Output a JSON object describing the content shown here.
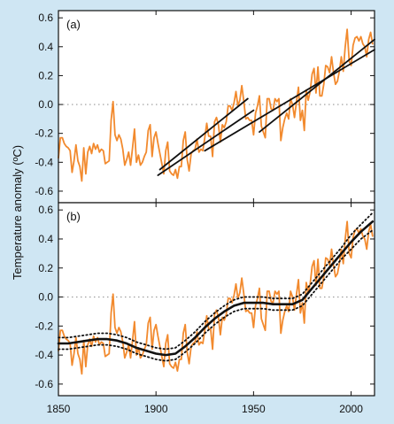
{
  "figure": {
    "background": "#cfe6f3",
    "ylabel": "Temperature anomaly (ºC)"
  },
  "colors": {
    "observations": "#f28a2e",
    "trend": "#111111",
    "zero_line": "#999999"
  },
  "chart_data": [
    {
      "type": "line",
      "panel_label": "(a)",
      "xlim": [
        1850,
        2012
      ],
      "ylim": [
        -0.68,
        0.65
      ],
      "yticks": [
        -0.6,
        -0.4,
        -0.2,
        0.0,
        0.2,
        0.4,
        0.6
      ],
      "ytick_labels": [
        "-0.6",
        "-0.4",
        "-0.2",
        "0.0",
        "0.2",
        "0.4",
        "0.6"
      ],
      "grid": false,
      "zero_line": "dotted",
      "series": [
        {
          "style": "orange-line",
          "x": [
            1850,
            1851,
            1852,
            1853,
            1854,
            1855,
            1856,
            1857,
            1858,
            1859,
            1860,
            1861,
            1862,
            1863,
            1864,
            1865,
            1866,
            1867,
            1868,
            1869,
            1870,
            1871,
            1872,
            1873,
            1874,
            1875,
            1876,
            1877,
            1878,
            1879,
            1880,
            1881,
            1882,
            1883,
            1884,
            1885,
            1886,
            1887,
            1888,
            1889,
            1890,
            1891,
            1892,
            1893,
            1894,
            1895,
            1896,
            1897,
            1898,
            1899,
            1900,
            1901,
            1902,
            1903,
            1904,
            1905,
            1906,
            1907,
            1908,
            1909,
            1910,
            1911,
            1912,
            1913,
            1914,
            1915,
            1916,
            1917,
            1918,
            1919,
            1920,
            1921,
            1922,
            1923,
            1924,
            1925,
            1926,
            1927,
            1928,
            1929,
            1930,
            1931,
            1932,
            1933,
            1934,
            1935,
            1936,
            1937,
            1938,
            1939,
            1940,
            1941,
            1942,
            1943,
            1944,
            1945,
            1946,
            1947,
            1948,
            1949,
            1950,
            1951,
            1952,
            1953,
            1954,
            1955,
            1956,
            1957,
            1958,
            1959,
            1960,
            1961,
            1962,
            1963,
            1964,
            1965,
            1966,
            1967,
            1968,
            1969,
            1970,
            1971,
            1972,
            1973,
            1974,
            1975,
            1976,
            1977,
            1978,
            1979,
            1980,
            1981,
            1982,
            1983,
            1984,
            1985,
            1986,
            1987,
            1988,
            1989,
            1990,
            1991,
            1992,
            1993,
            1994,
            1995,
            1996,
            1997,
            1998,
            1999,
            2000,
            2001,
            2002,
            2003,
            2004,
            2005,
            2006,
            2007,
            2008,
            2009,
            2010,
            2011
          ],
          "y": [
            -0.37,
            -0.23,
            -0.23,
            -0.27,
            -0.29,
            -0.3,
            -0.32,
            -0.47,
            -0.39,
            -0.28,
            -0.39,
            -0.43,
            -0.53,
            -0.3,
            -0.48,
            -0.33,
            -0.29,
            -0.34,
            -0.27,
            -0.31,
            -0.28,
            -0.33,
            -0.31,
            -0.32,
            -0.41,
            -0.4,
            -0.39,
            -0.11,
            0.02,
            -0.21,
            -0.25,
            -0.21,
            -0.24,
            -0.31,
            -0.42,
            -0.38,
            -0.33,
            -0.42,
            -0.3,
            -0.17,
            -0.4,
            -0.35,
            -0.42,
            -0.4,
            -0.36,
            -0.33,
            -0.18,
            -0.14,
            -0.36,
            -0.23,
            -0.19,
            -0.27,
            -0.34,
            -0.41,
            -0.48,
            -0.32,
            -0.26,
            -0.46,
            -0.48,
            -0.49,
            -0.45,
            -0.51,
            -0.43,
            -0.43,
            -0.25,
            -0.19,
            -0.38,
            -0.46,
            -0.34,
            -0.32,
            -0.31,
            -0.24,
            -0.33,
            -0.31,
            -0.32,
            -0.23,
            -0.13,
            -0.22,
            -0.22,
            -0.36,
            -0.12,
            -0.09,
            -0.14,
            -0.26,
            -0.14,
            -0.16,
            -0.12,
            -0.01,
            -0.01,
            -0.04,
            0.01,
            0.09,
            -0.01,
            0.03,
            0.13,
            0.02,
            -0.1,
            -0.09,
            -0.11,
            -0.11,
            -0.21,
            -0.06,
            -0.01,
            0.06,
            -0.15,
            -0.19,
            -0.23,
            0.04,
            0.04,
            -0.03,
            -0.04,
            0.04,
            0.02,
            0.04,
            -0.25,
            -0.16,
            -0.1,
            -0.06,
            -0.1,
            0.04,
            0.0,
            -0.09,
            0.02,
            0.12,
            -0.11,
            -0.04,
            -0.18,
            0.1,
            0.03,
            0.09,
            0.21,
            0.25,
            0.08,
            0.26,
            0.06,
            0.06,
            0.14,
            0.27,
            0.26,
            0.22,
            0.33,
            0.22,
            0.14,
            0.16,
            0.23,
            0.33,
            0.23,
            0.4,
            0.52,
            0.3,
            0.27,
            0.41,
            0.46,
            0.47,
            0.44,
            0.47,
            0.42,
            0.4,
            0.33,
            0.45,
            0.5,
            0.42
          ]
        },
        {
          "style": "trend-line",
          "x": [
            1901,
            1950
          ],
          "y": [
            -0.49,
            -0.04
          ]
        },
        {
          "style": "trend-line",
          "x": [
            1902,
            1947
          ],
          "y": [
            -0.45,
            0.04
          ]
        },
        {
          "style": "trend-line",
          "x": [
            1953,
            2012
          ],
          "y": [
            -0.19,
            0.45
          ]
        },
        {
          "style": "trend-line",
          "x": [
            1925,
            2012
          ],
          "y": [
            -0.32,
            0.38
          ]
        }
      ]
    },
    {
      "type": "line",
      "panel_label": "(b)",
      "xlim": [
        1850,
        2012
      ],
      "ylim": [
        -0.68,
        0.65
      ],
      "xticks": [
        1850,
        1900,
        1950,
        2000
      ],
      "xtick_labels": [
        "1850",
        "1900",
        "1950",
        "2000"
      ],
      "yticks": [
        -0.6,
        -0.4,
        -0.2,
        0.0,
        0.2,
        0.4,
        0.6
      ],
      "ytick_labels": [
        "-0.6",
        "-0.4",
        "-0.2",
        "0.0",
        "0.2",
        "0.4",
        "0.6"
      ],
      "grid": false,
      "zero_line": "dotted",
      "series": [
        {
          "style": "orange-line",
          "x": [
            1850,
            1851,
            1852,
            1853,
            1854,
            1855,
            1856,
            1857,
            1858,
            1859,
            1860,
            1861,
            1862,
            1863,
            1864,
            1865,
            1866,
            1867,
            1868,
            1869,
            1870,
            1871,
            1872,
            1873,
            1874,
            1875,
            1876,
            1877,
            1878,
            1879,
            1880,
            1881,
            1882,
            1883,
            1884,
            1885,
            1886,
            1887,
            1888,
            1889,
            1890,
            1891,
            1892,
            1893,
            1894,
            1895,
            1896,
            1897,
            1898,
            1899,
            1900,
            1901,
            1902,
            1903,
            1904,
            1905,
            1906,
            1907,
            1908,
            1909,
            1910,
            1911,
            1912,
            1913,
            1914,
            1915,
            1916,
            1917,
            1918,
            1919,
            1920,
            1921,
            1922,
            1923,
            1924,
            1925,
            1926,
            1927,
            1928,
            1929,
            1930,
            1931,
            1932,
            1933,
            1934,
            1935,
            1936,
            1937,
            1938,
            1939,
            1940,
            1941,
            1942,
            1943,
            1944,
            1945,
            1946,
            1947,
            1948,
            1949,
            1950,
            1951,
            1952,
            1953,
            1954,
            1955,
            1956,
            1957,
            1958,
            1959,
            1960,
            1961,
            1962,
            1963,
            1964,
            1965,
            1966,
            1967,
            1968,
            1969,
            1970,
            1971,
            1972,
            1973,
            1974,
            1975,
            1976,
            1977,
            1978,
            1979,
            1980,
            1981,
            1982,
            1983,
            1984,
            1985,
            1986,
            1987,
            1988,
            1989,
            1990,
            1991,
            1992,
            1993,
            1994,
            1995,
            1996,
            1997,
            1998,
            1999,
            2000,
            2001,
            2002,
            2003,
            2004,
            2005,
            2006,
            2007,
            2008,
            2009,
            2010,
            2011
          ],
          "y": [
            -0.37,
            -0.23,
            -0.23,
            -0.27,
            -0.29,
            -0.3,
            -0.32,
            -0.47,
            -0.39,
            -0.28,
            -0.39,
            -0.43,
            -0.53,
            -0.3,
            -0.48,
            -0.33,
            -0.29,
            -0.34,
            -0.27,
            -0.31,
            -0.28,
            -0.33,
            -0.31,
            -0.32,
            -0.41,
            -0.4,
            -0.39,
            -0.11,
            0.02,
            -0.21,
            -0.25,
            -0.21,
            -0.24,
            -0.31,
            -0.42,
            -0.38,
            -0.33,
            -0.42,
            -0.3,
            -0.17,
            -0.4,
            -0.35,
            -0.42,
            -0.4,
            -0.36,
            -0.33,
            -0.18,
            -0.14,
            -0.36,
            -0.23,
            -0.19,
            -0.27,
            -0.34,
            -0.41,
            -0.48,
            -0.32,
            -0.26,
            -0.46,
            -0.48,
            -0.49,
            -0.45,
            -0.51,
            -0.43,
            -0.43,
            -0.25,
            -0.19,
            -0.38,
            -0.46,
            -0.34,
            -0.32,
            -0.31,
            -0.24,
            -0.33,
            -0.31,
            -0.32,
            -0.23,
            -0.13,
            -0.22,
            -0.22,
            -0.36,
            -0.12,
            -0.09,
            -0.14,
            -0.26,
            -0.14,
            -0.16,
            -0.12,
            -0.01,
            -0.01,
            -0.04,
            0.01,
            0.09,
            -0.01,
            0.03,
            0.13,
            0.02,
            -0.1,
            -0.09,
            -0.11,
            -0.11,
            -0.21,
            -0.06,
            -0.01,
            0.06,
            -0.15,
            -0.19,
            -0.23,
            0.04,
            0.04,
            -0.03,
            -0.04,
            0.04,
            0.02,
            0.04,
            -0.25,
            -0.16,
            -0.1,
            -0.06,
            -0.1,
            0.04,
            0.0,
            -0.09,
            0.02,
            0.12,
            -0.11,
            -0.04,
            -0.18,
            0.1,
            0.03,
            0.09,
            0.21,
            0.25,
            0.08,
            0.26,
            0.06,
            0.06,
            0.14,
            0.27,
            0.26,
            0.22,
            0.33,
            0.22,
            0.14,
            0.16,
            0.23,
            0.33,
            0.23,
            0.4,
            0.52,
            0.3,
            0.27,
            0.41,
            0.46,
            0.47,
            0.44,
            0.47,
            0.42,
            0.4,
            0.33,
            0.45,
            0.5,
            0.42
          ]
        },
        {
          "style": "smooth-line",
          "x": [
            1850,
            1855,
            1860,
            1865,
            1870,
            1875,
            1880,
            1885,
            1890,
            1895,
            1900,
            1905,
            1910,
            1915,
            1920,
            1925,
            1930,
            1935,
            1940,
            1945,
            1950,
            1955,
            1960,
            1965,
            1970,
            1975,
            1980,
            1985,
            1990,
            1995,
            2000,
            2005,
            2011
          ],
          "y": [
            -0.32,
            -0.32,
            -0.31,
            -0.3,
            -0.29,
            -0.29,
            -0.3,
            -0.32,
            -0.35,
            -0.37,
            -0.39,
            -0.4,
            -0.39,
            -0.34,
            -0.28,
            -0.21,
            -0.15,
            -0.1,
            -0.06,
            -0.04,
            -0.04,
            -0.04,
            -0.05,
            -0.05,
            -0.05,
            -0.02,
            0.06,
            0.14,
            0.22,
            0.3,
            0.38,
            0.45,
            0.52
          ]
        },
        {
          "style": "upper-dotted",
          "x": [
            1850,
            1855,
            1860,
            1865,
            1870,
            1875,
            1880,
            1885,
            1890,
            1895,
            1900,
            1905,
            1910,
            1915,
            1920,
            1925,
            1930,
            1935,
            1940,
            1945,
            1950,
            1955,
            1960,
            1965,
            1970,
            1975,
            1980,
            1985,
            1990,
            1995,
            2000,
            2005,
            2011
          ],
          "y": [
            -0.28,
            -0.28,
            -0.27,
            -0.26,
            -0.25,
            -0.25,
            -0.26,
            -0.28,
            -0.31,
            -0.33,
            -0.35,
            -0.36,
            -0.35,
            -0.3,
            -0.24,
            -0.17,
            -0.11,
            -0.06,
            -0.02,
            0.0,
            0.0,
            0.0,
            -0.01,
            -0.01,
            -0.01,
            0.02,
            0.1,
            0.18,
            0.26,
            0.34,
            0.43,
            0.5,
            0.58
          ]
        },
        {
          "style": "lower-dotted",
          "x": [
            1850,
            1855,
            1860,
            1865,
            1870,
            1875,
            1880,
            1885,
            1890,
            1895,
            1900,
            1905,
            1910,
            1915,
            1920,
            1925,
            1930,
            1935,
            1940,
            1945,
            1950,
            1955,
            1960,
            1965,
            1970,
            1975,
            1980,
            1985,
            1990,
            1995,
            2000,
            2005,
            2011
          ],
          "y": [
            -0.36,
            -0.36,
            -0.35,
            -0.34,
            -0.33,
            -0.33,
            -0.34,
            -0.36,
            -0.39,
            -0.41,
            -0.43,
            -0.44,
            -0.43,
            -0.38,
            -0.32,
            -0.25,
            -0.19,
            -0.14,
            -0.1,
            -0.08,
            -0.08,
            -0.08,
            -0.09,
            -0.09,
            -0.09,
            -0.06,
            0.02,
            0.1,
            0.18,
            0.26,
            0.33,
            0.4,
            0.46
          ]
        }
      ]
    }
  ]
}
